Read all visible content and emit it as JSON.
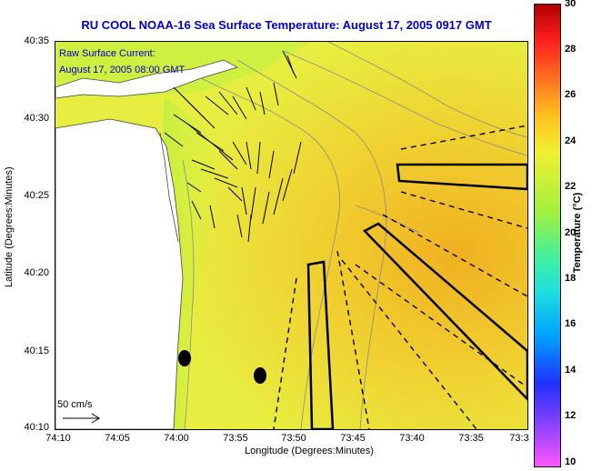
{
  "title": "RU COOL  NOAA-16  Sea Surface Temperature:  August 17, 2005 0917 GMT",
  "legend_line1": "Raw Surface Current:",
  "legend_line2": "August 17, 2005 08:00 GMT",
  "scale_label": "50 cm/s",
  "y_axis_title": "Latitude (Degrees:Minutes)",
  "x_axis_title": "Longitude (Degrees:Minutes)",
  "y_ticks": [
    "40:35",
    "40:30",
    "40:25",
    "40:20",
    "40:15",
    "40:10"
  ],
  "x_ticks": [
    "74:10",
    "74:05",
    "74:00",
    "73:55",
    "73:50",
    "73:45",
    "73:40",
    "73:35",
    "73:3"
  ],
  "colorbar_title": "Temperature (°C)",
  "colorbar_ticks": [
    "30",
    "28",
    "26",
    "24",
    "22",
    "20",
    "18",
    "16",
    "14",
    "12",
    "10"
  ],
  "colors": {
    "title": "#0000c8",
    "sst_warm": "#f0d030",
    "sst_mid": "#e8f040",
    "land": "#ffffff"
  }
}
